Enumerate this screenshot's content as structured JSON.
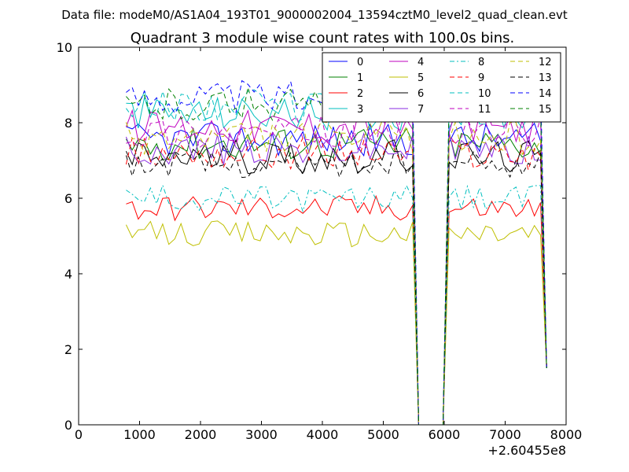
{
  "chart_data": {
    "type": "line",
    "suptitle": "Data file: modeM0/AS1A04_193T01_9000002004_13594cztM0_level2_quad_clean.evt",
    "title": "Quadrant 3 module wise count rates with 100.0s bins.",
    "xlabel": "",
    "ylabel": "",
    "x_offset_label": "+2.60455e8",
    "xlim": [
      0,
      8000
    ],
    "ylim": [
      0,
      10
    ],
    "xticks": [
      "0",
      "1000",
      "2000",
      "3000",
      "4000",
      "5000",
      "6000",
      "7000",
      "8000"
    ],
    "yticks": [
      "0",
      "2",
      "4",
      "6",
      "8",
      "10"
    ],
    "legend_position": "top-right",
    "x": [
      780,
      880,
      980,
      1080,
      1180,
      1280,
      1380,
      1480,
      1580,
      1680,
      1780,
      1880,
      1980,
      2080,
      2180,
      2280,
      2380,
      2480,
      2580,
      2680,
      2780,
      2880,
      2980,
      3080,
      3180,
      3280,
      3380,
      3480,
      3580,
      3680,
      3780,
      3880,
      3980,
      4080,
      4180,
      4280,
      4380,
      4480,
      4580,
      4680,
      4780,
      4880,
      4980,
      5080,
      5180,
      5280,
      5380,
      5480,
      5580,
      5680,
      5780,
      5880,
      5980,
      6080,
      6180,
      6280,
      6380,
      6480,
      6580,
      6680,
      6780,
      6880,
      6980,
      7080,
      7180,
      7280,
      7380,
      7480,
      7580,
      7680
    ],
    "series": [
      {
        "name": "0",
        "color": "#0000ff",
        "dash": "solid",
        "level": 7.55
      },
      {
        "name": "1",
        "color": "#008000",
        "dash": "solid",
        "level": 7.45
      },
      {
        "name": "2",
        "color": "#ff0000",
        "dash": "solid",
        "level": 5.75
      },
      {
        "name": "3",
        "color": "#00bfbf",
        "dash": "solid",
        "level": 8.25
      },
      {
        "name": "4",
        "color": "#bf00bf",
        "dash": "solid",
        "level": 7.9
      },
      {
        "name": "5",
        "color": "#bfbf00",
        "dash": "solid",
        "level": 5.05
      },
      {
        "name": "6",
        "color": "#000000",
        "dash": "solid",
        "level": 7.1
      },
      {
        "name": "7",
        "color": "#8a2be2",
        "dash": "solid",
        "level": 7.3
      },
      {
        "name": "8",
        "color": "#00bfbf",
        "dash": "dashdot",
        "level": 6.0
      },
      {
        "name": "9",
        "color": "#ff0000",
        "dash": "dashed",
        "level": 7.2
      },
      {
        "name": "10",
        "color": "#00bfbf",
        "dash": "dashed",
        "level": 8.45
      },
      {
        "name": "11",
        "color": "#bf00bf",
        "dash": "dashed",
        "level": 7.75
      },
      {
        "name": "12",
        "color": "#bfbf00",
        "dash": "dashed",
        "level": 7.6
      },
      {
        "name": "13",
        "color": "#000000",
        "dash": "dashed",
        "level": 6.9
      },
      {
        "name": "14",
        "color": "#0000ff",
        "dash": "dashed",
        "level": 8.7
      },
      {
        "name": "15",
        "color": "#008000",
        "dash": "dashed",
        "level": 8.5
      }
    ],
    "gap": {
      "from": 5500,
      "to": 6000,
      "value": 0
    },
    "end_drop": {
      "x": 7680,
      "value": 1.5
    }
  }
}
